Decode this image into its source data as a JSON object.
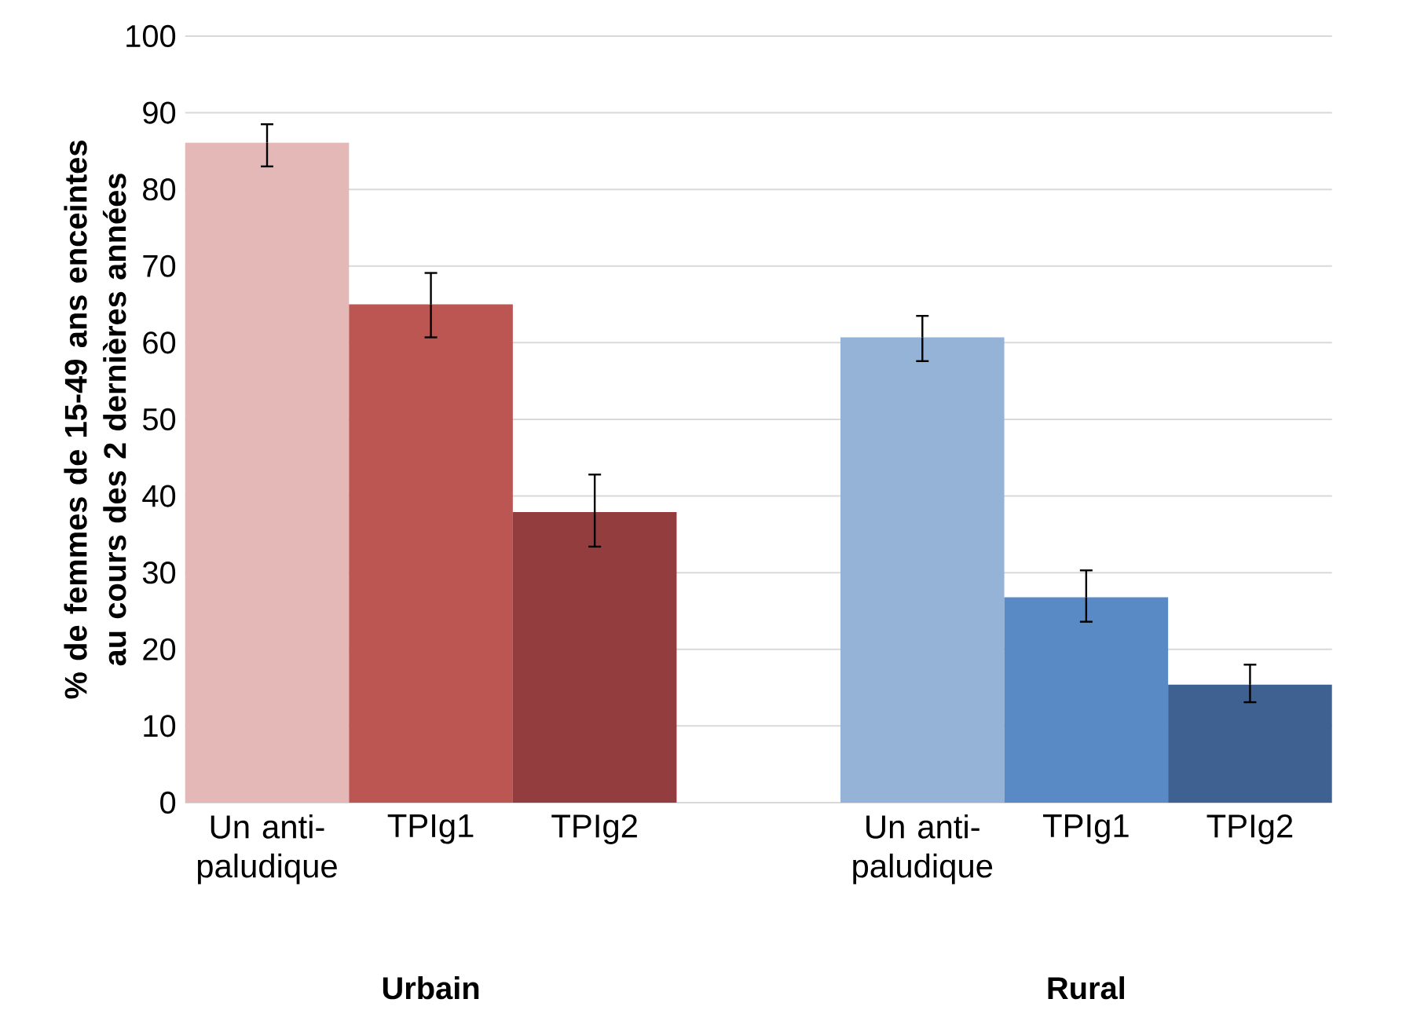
{
  "chart_data": {
    "type": "bar",
    "ylabel": "% de femmes de 15-49 ans enceintes au cours des 2 dernières années",
    "categories": [
      "Un anti-paludique",
      "TPIg1",
      "TPIg2",
      null,
      "Un anti-paludique",
      "TPIg1",
      "TPIg2"
    ],
    "values": [
      86.1,
      65.0,
      37.9,
      null,
      60.7,
      26.8,
      15.4
    ],
    "colors": [
      "#e3b8b7",
      "#bc5653",
      "#943d3f",
      null,
      "#95b3d7",
      "#5a8ac6",
      "#3e6191"
    ],
    "errors": [
      [
        83.0,
        88.5
      ],
      [
        60.7,
        69.1
      ],
      [
        33.4,
        42.8
      ],
      null,
      [
        57.6,
        63.5
      ],
      [
        23.6,
        30.3
      ],
      [
        13.1,
        18.0
      ]
    ],
    "annotations": [
      "Urbain",
      "Rural"
    ],
    "ylim": [
      0,
      100
    ],
    "yticks": [
      0,
      10,
      20,
      30,
      40,
      50,
      60,
      70,
      80,
      90,
      100
    ],
    "grid": "y"
  }
}
